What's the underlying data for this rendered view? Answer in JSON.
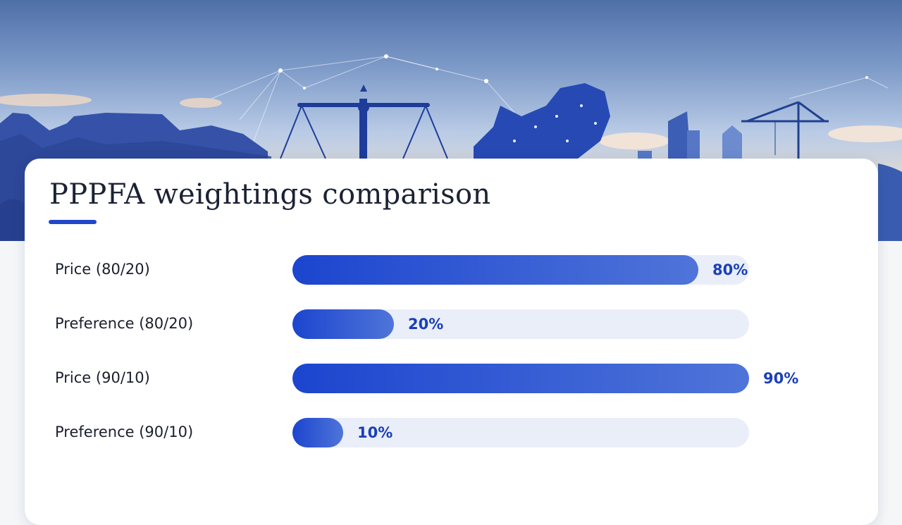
{
  "colors": {
    "accent": "#1f47c9",
    "bar_start": "#1c45cf",
    "bar_end": "#4f74d9",
    "track": "#e9eef9",
    "value_text": "#1a3fb8"
  },
  "chart_data": {
    "type": "bar",
    "orientation": "horizontal",
    "title": "PPPFA weightings comparison",
    "categories": [
      "Price (80/20)",
      "Preference (80/20)",
      "Price (90/10)",
      "Preference (90/10)"
    ],
    "values": [
      80,
      20,
      90,
      10
    ],
    "value_labels": [
      "80%",
      "20%",
      "90%",
      "10%"
    ],
    "xlim": [
      0,
      90
    ],
    "grid": false,
    "legend": "none"
  }
}
